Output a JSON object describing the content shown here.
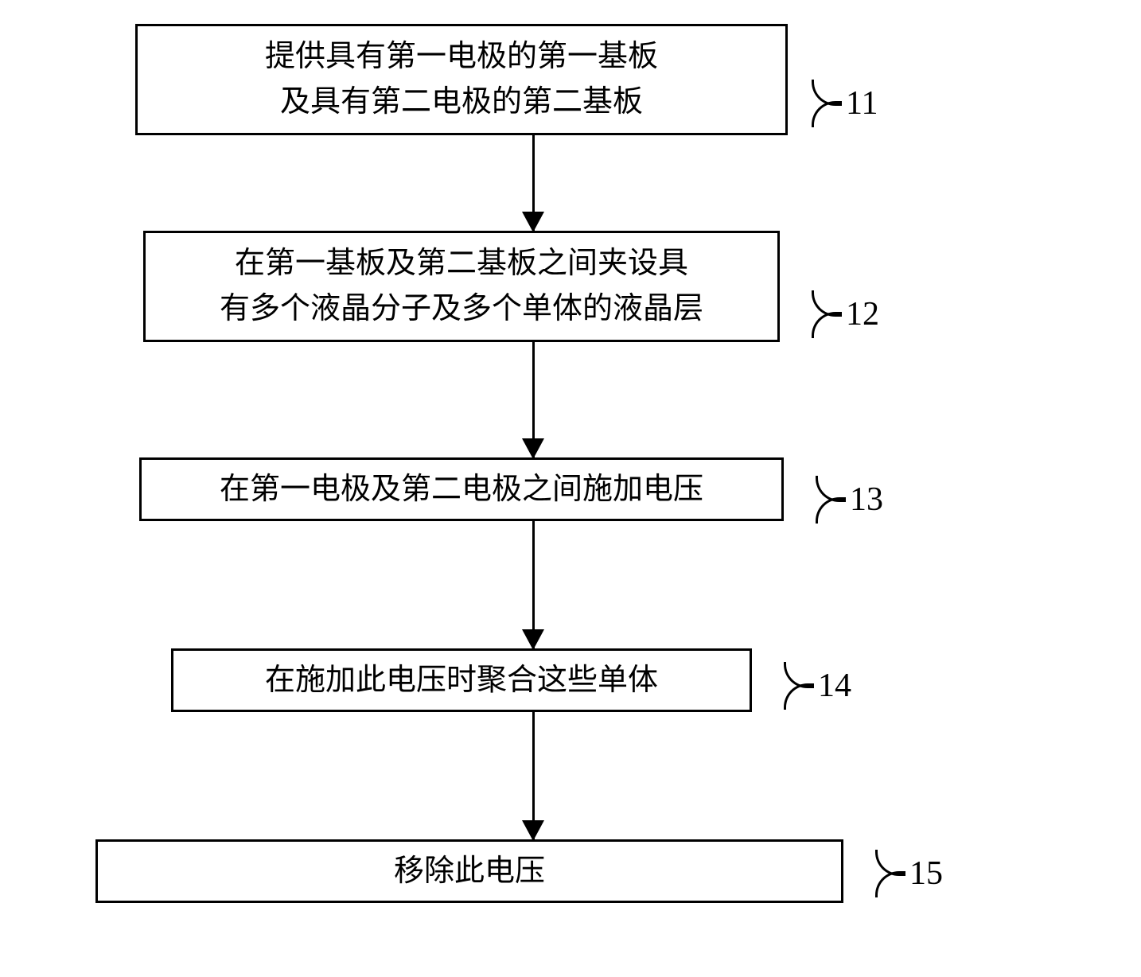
{
  "flowchart": {
    "type": "flowchart",
    "background_color": "#ffffff",
    "border_color": "#000000",
    "border_width": 3,
    "text_color": "#000000",
    "font_size": 38,
    "label_font_size": 42,
    "arrow_color": "#000000",
    "steps": [
      {
        "id": "11",
        "line1": "提供具有第一电极的第一基板",
        "line2": "及具有第二电极的第二基板",
        "label": "11"
      },
      {
        "id": "12",
        "line1": "在第一基板及第二基板之间夹设具",
        "line2": "有多个液晶分子及多个单体的液晶层",
        "label": "12"
      },
      {
        "id": "13",
        "line1": "在第一电极及第二电极之间施加电压",
        "label": "13"
      },
      {
        "id": "14",
        "line1": "在施加此电压时聚合这些单体",
        "label": "14"
      },
      {
        "id": "15",
        "line1": "移除此电压",
        "label": "15"
      }
    ]
  }
}
